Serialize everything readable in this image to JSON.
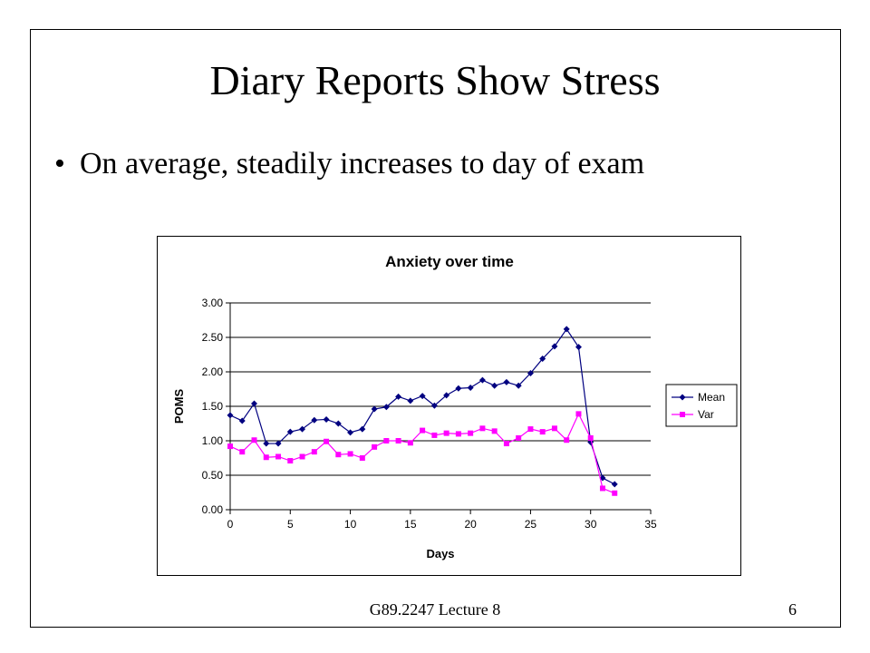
{
  "slide": {
    "title": "Diary Reports Show Stress",
    "bullet": "On average, steadily increases to day of exam",
    "footer": "G89.2247 Lecture 8",
    "page_number": "6"
  },
  "chart_data": {
    "type": "line",
    "title": "Anxiety over time",
    "xlabel": "Days",
    "ylabel": "POMS",
    "xlim": [
      0,
      35
    ],
    "ylim": [
      0,
      3
    ],
    "x_ticks": [
      "0",
      "5",
      "10",
      "15",
      "20",
      "25",
      "30",
      "35"
    ],
    "y_ticks": [
      "0.00",
      "0.50",
      "1.00",
      "1.50",
      "2.00",
      "2.50",
      "3.00"
    ],
    "grid": "horizontal",
    "legend": "right",
    "x": [
      0,
      1,
      2,
      3,
      4,
      5,
      6,
      7,
      8,
      9,
      10,
      11,
      12,
      13,
      14,
      15,
      16,
      17,
      18,
      19,
      20,
      21,
      22,
      23,
      24,
      25,
      26,
      27,
      28,
      29,
      30,
      31,
      32
    ],
    "series": [
      {
        "name": "Mean",
        "color": "#000080",
        "marker": "diamond",
        "values": [
          1.37,
          1.29,
          1.54,
          0.96,
          0.96,
          1.13,
          1.17,
          1.3,
          1.31,
          1.25,
          1.12,
          1.17,
          1.46,
          1.49,
          1.64,
          1.58,
          1.65,
          1.51,
          1.66,
          1.76,
          1.77,
          1.88,
          1.8,
          1.85,
          1.8,
          1.98,
          2.19,
          2.37,
          2.62,
          2.36,
          0.98,
          0.46,
          0.37
        ]
      },
      {
        "name": "Var",
        "color": "#ff00ff",
        "marker": "square",
        "values": [
          0.92,
          0.84,
          1.01,
          0.76,
          0.77,
          0.71,
          0.77,
          0.84,
          0.99,
          0.8,
          0.81,
          0.75,
          0.91,
          1.0,
          1.0,
          0.97,
          1.15,
          1.08,
          1.11,
          1.1,
          1.11,
          1.18,
          1.14,
          0.96,
          1.04,
          1.17,
          1.13,
          1.18,
          1.01,
          1.39,
          1.04,
          0.31,
          0.24
        ]
      }
    ]
  }
}
